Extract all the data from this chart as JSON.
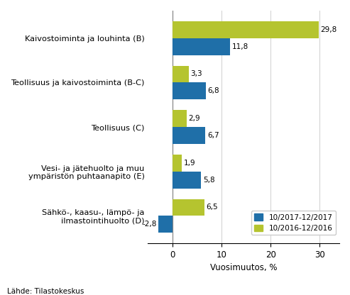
{
  "categories": [
    "Kaivostoiminta ja louhinta (B)",
    "Teollisuus ja kaivostoiminta (B-C)",
    "Teollisuus (C)",
    "Vesi- ja jätehuolto ja muu\ny mpäristön puhtaanapito (E)",
    "Sähkö-, kaasu-, lämpö- ja\nilmastointihuolto (D)"
  ],
  "series_2017": [
    11.8,
    6.8,
    6.7,
    5.8,
    -2.8
  ],
  "series_2016": [
    29.8,
    3.3,
    2.9,
    1.9,
    6.5
  ],
  "color_2017": "#1f6fa8",
  "color_2016": "#b5c42f",
  "xlabel": "Vuosimuutos, %",
  "legend_2017": "10/2017-12/2017",
  "legend_2016": "10/2016-12/2016",
  "footer": "Lähde: Tilastokeskus",
  "xlim": [
    -5,
    34
  ],
  "xticks": [
    0,
    10,
    20,
    30
  ],
  "bar_height": 0.38
}
